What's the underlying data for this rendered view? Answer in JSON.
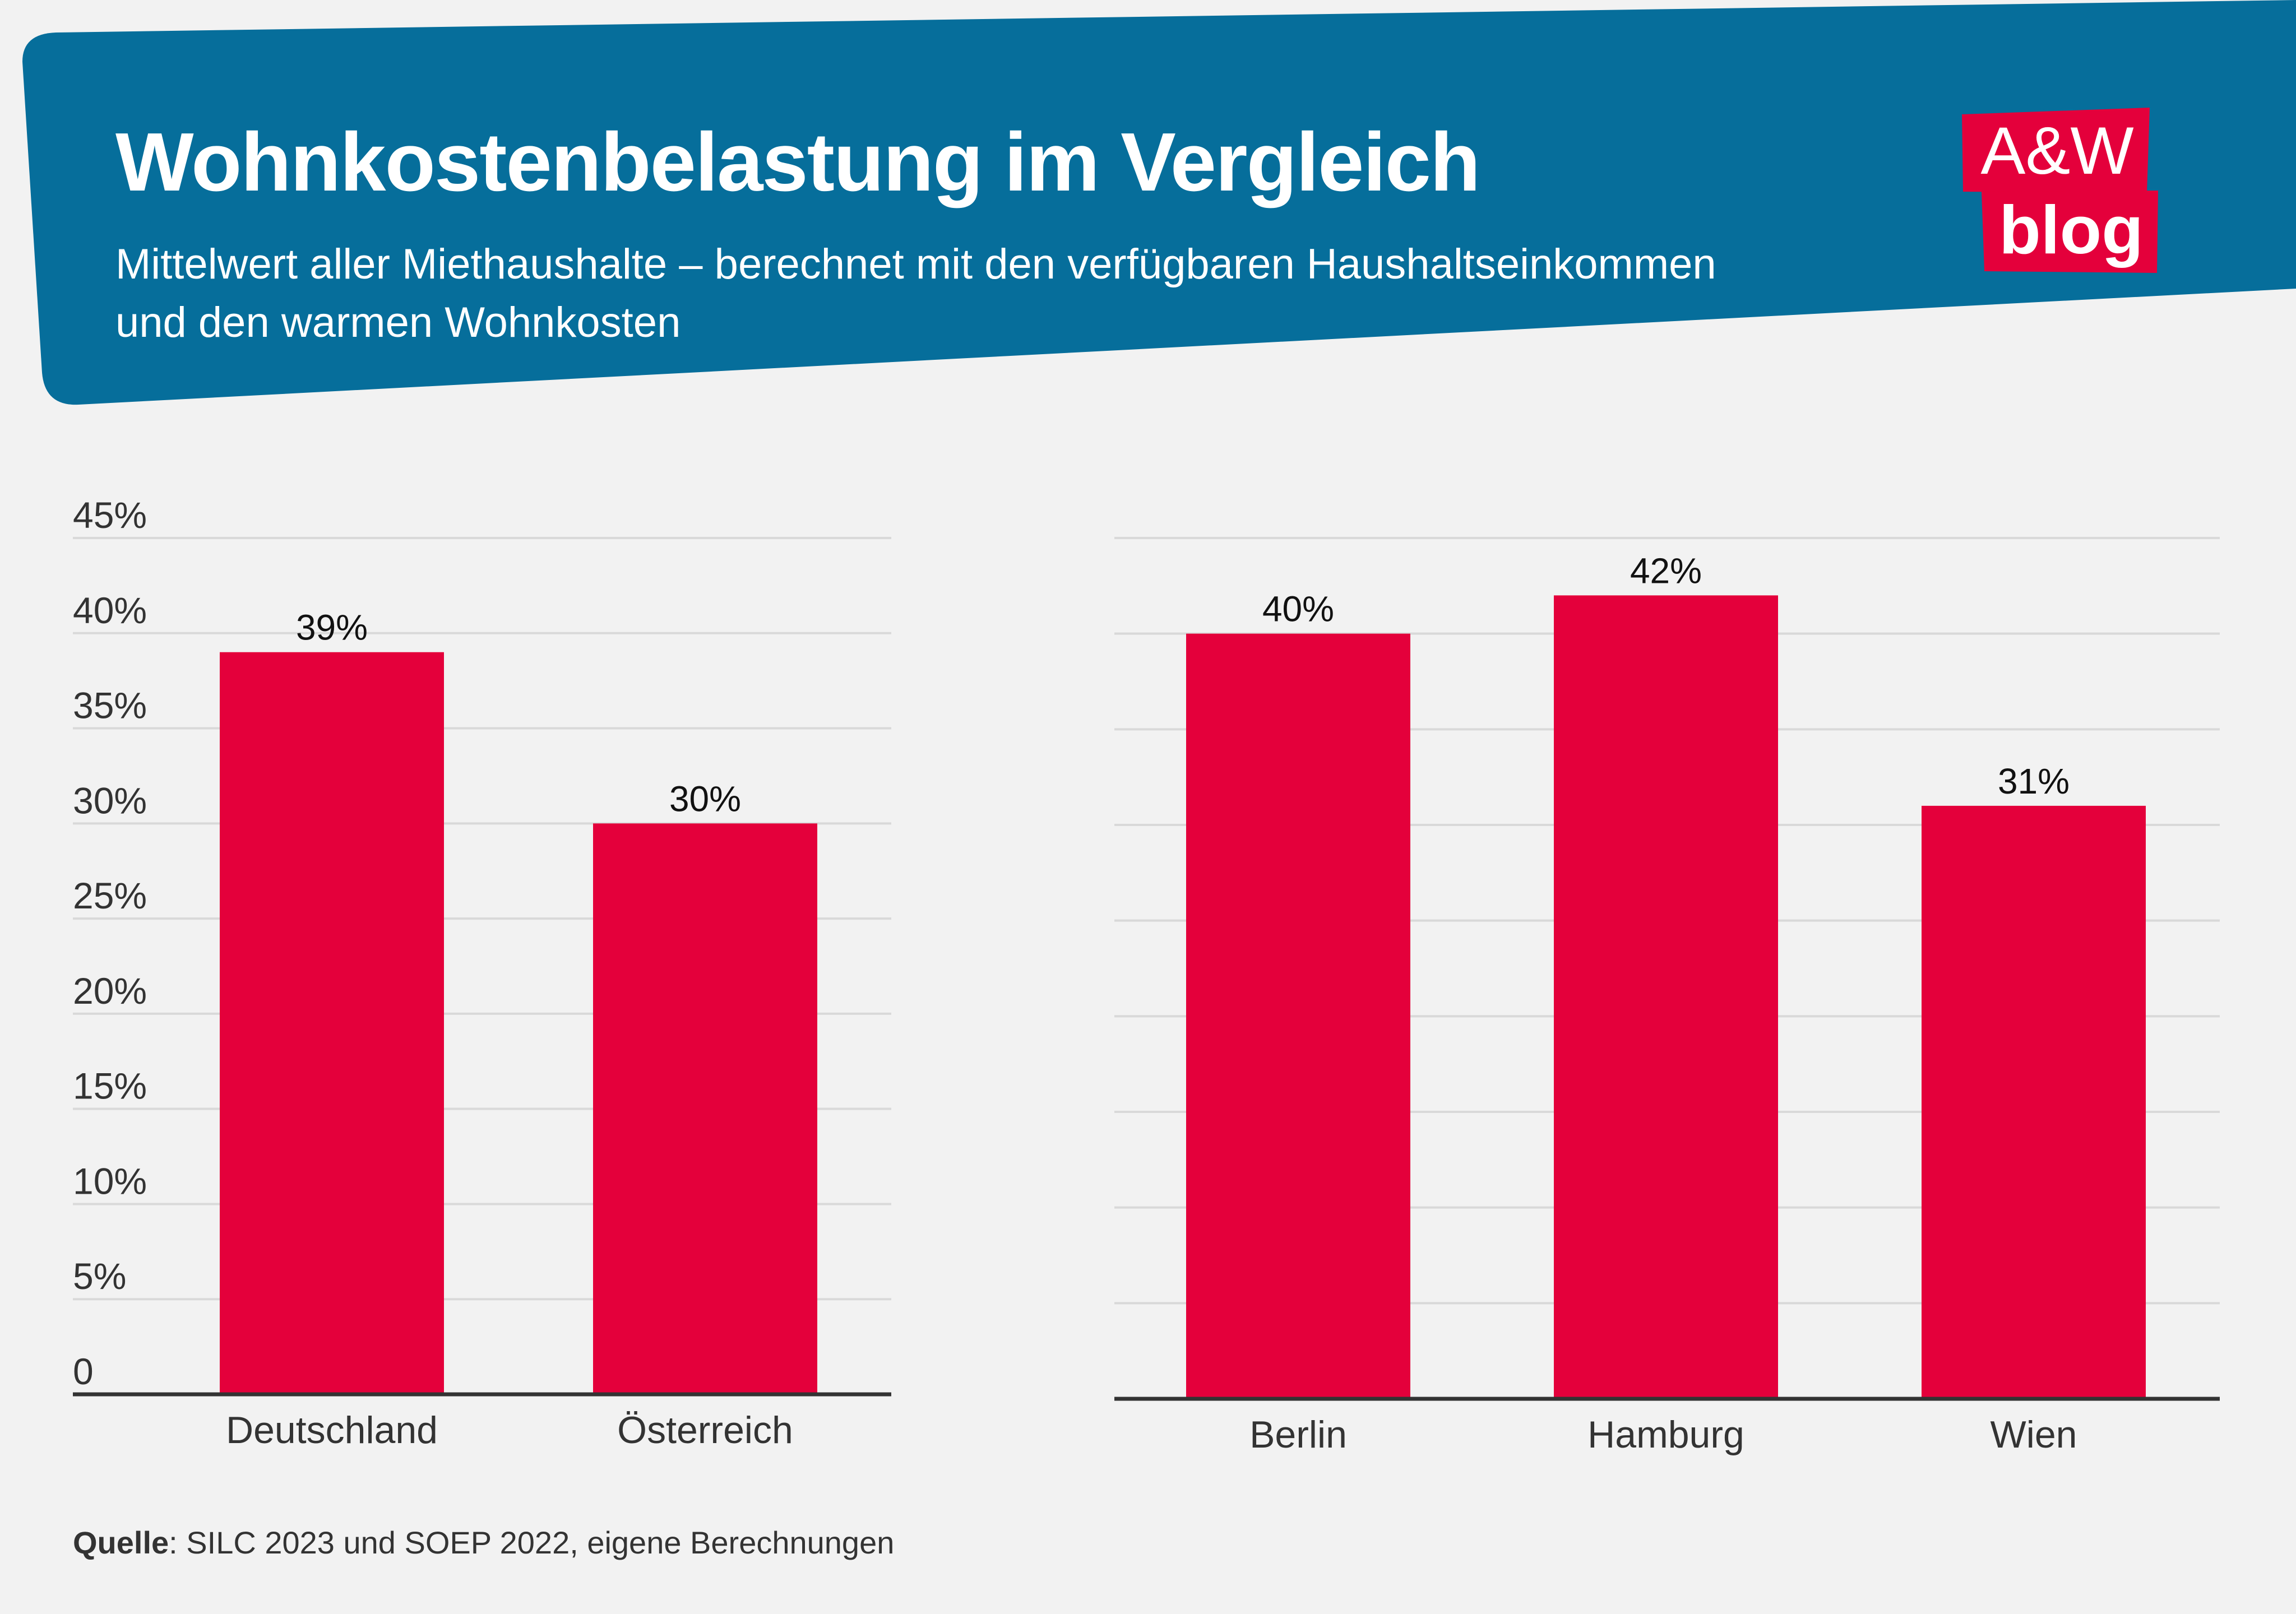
{
  "header": {
    "title": "Wohnkostenbelastung im Vergleich",
    "subtitle": "Mittelwert aller Miethaushalte – berechnet mit den verfügbaren Haushaltseinkommen und den warmen Wohnkosten"
  },
  "logo": {
    "top": "A&W",
    "bottom": "blog"
  },
  "colors": {
    "banner": "#066e9b",
    "bar": "#e4003b",
    "grid": "#d9d9d9",
    "axis": "#333333"
  },
  "chart_data": [
    {
      "type": "bar",
      "categories": [
        "Deutschland",
        "Österreich"
      ],
      "values": [
        39,
        30
      ],
      "value_labels": [
        "39%",
        "30%"
      ],
      "ylim": [
        0,
        45
      ],
      "yticks": [
        0,
        5,
        10,
        15,
        20,
        25,
        30,
        35,
        40,
        45
      ],
      "ytick_labels": [
        "0",
        "5%",
        "10%",
        "15%",
        "20%",
        "25%",
        "30%",
        "35%",
        "40%",
        "45%"
      ],
      "grid": true
    },
    {
      "type": "bar",
      "categories": [
        "Berlin",
        "Hamburg",
        "Wien"
      ],
      "values": [
        40,
        42,
        31
      ],
      "value_labels": [
        "40%",
        "42%",
        "31%"
      ],
      "ylim": [
        0,
        45
      ],
      "grid": true
    }
  ],
  "source": {
    "label": "Quelle",
    "text": ": SILC 2023 und SOEP 2022, eigene Berechnungen"
  }
}
